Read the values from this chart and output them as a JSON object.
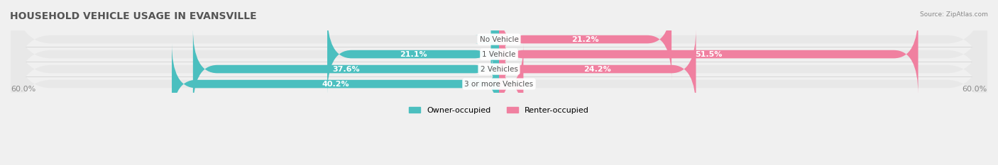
{
  "title": "HOUSEHOLD VEHICLE USAGE IN EVANSVILLE",
  "source": "Source: ZipAtlas.com",
  "categories": [
    "No Vehicle",
    "1 Vehicle",
    "2 Vehicles",
    "3 or more Vehicles"
  ],
  "owner_values": [
    1.0,
    21.1,
    37.6,
    40.2
  ],
  "renter_values": [
    21.2,
    51.5,
    24.2,
    3.0
  ],
  "owner_color": "#4BBFBF",
  "renter_color": "#F080A0",
  "owner_label": "Owner-occupied",
  "renter_label": "Renter-occupied",
  "axis_max": 60.0,
  "bg_color": "#f0f0f0",
  "bar_bg_color": "#e8e8e8",
  "bar_height": 0.55,
  "title_fontsize": 10,
  "label_fontsize": 8,
  "tick_fontsize": 8,
  "axis_label_left": "60.0%",
  "axis_label_right": "60.0%"
}
